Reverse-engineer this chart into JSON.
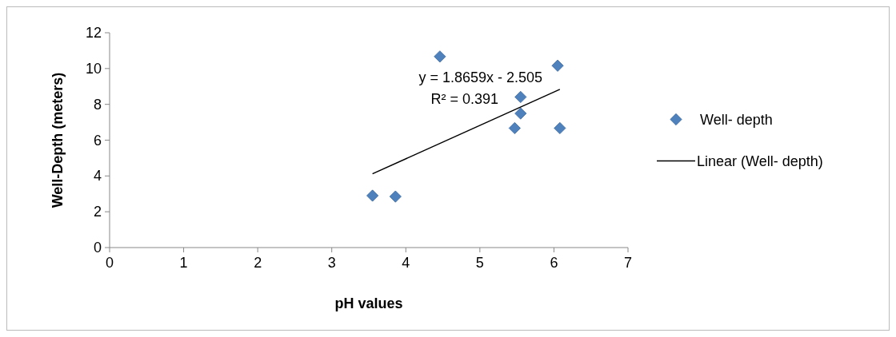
{
  "chart_data": {
    "type": "scatter",
    "xlabel": "pH values",
    "ylabel": "Well-Depth (meters)",
    "xlim": [
      0,
      7
    ],
    "xticks": [
      0,
      1,
      2,
      3,
      4,
      5,
      6,
      7
    ],
    "ylim": [
      0,
      12
    ],
    "yticks": [
      0,
      2,
      4,
      6,
      8,
      10,
      12
    ],
    "grid": false,
    "legend": "right",
    "marker": "diamond",
    "annotations": [
      "y = 1.8659x - 2.505",
      "R² = 0.391"
    ],
    "series": [
      {
        "name": "Well- depth",
        "color": "#4f81bd",
        "x": [
          3.55,
          3.86,
          4.46,
          6.05,
          5.55,
          5.55,
          5.47,
          6.08
        ],
        "values": [
          2.9,
          2.85,
          10.67,
          10.16,
          8.41,
          7.49,
          6.67,
          6.67
        ]
      },
      {
        "name": "Linear (Well- depth)",
        "type": "line",
        "color": "#000000",
        "line_style": "solid",
        "marker": "none",
        "x": [
          3.55,
          6.08
        ],
        "values": [
          4.12,
          8.84
        ]
      }
    ]
  }
}
